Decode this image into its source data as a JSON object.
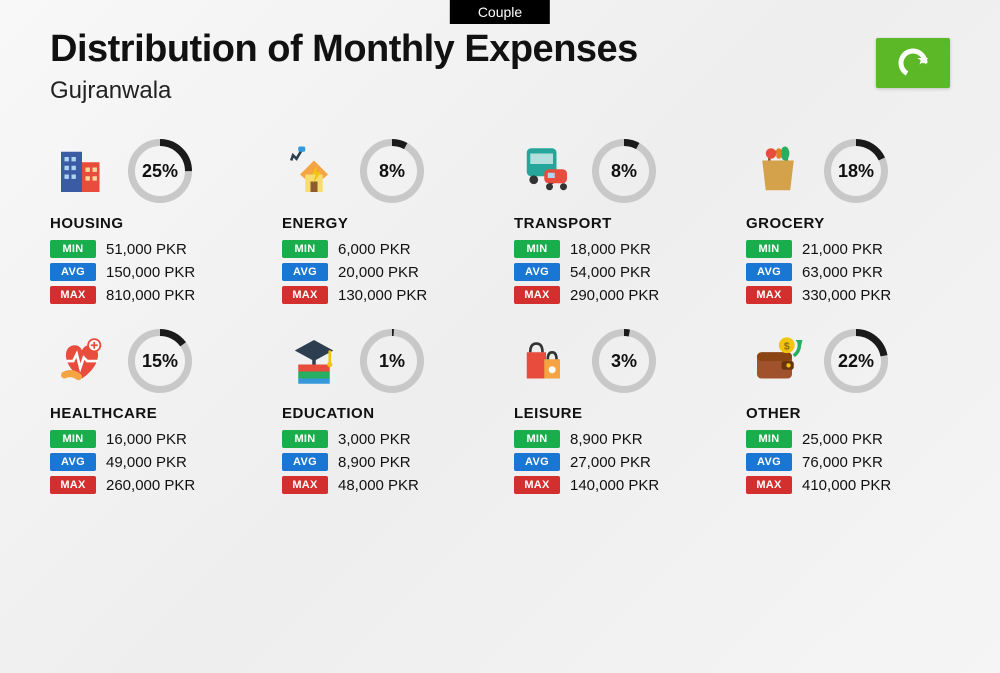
{
  "tag": "Couple",
  "title": "Distribution of Monthly Expenses",
  "subtitle": "Gujranwala",
  "currency": "PKR",
  "labels": {
    "min": "MIN",
    "avg": "AVG",
    "max": "MAX"
  },
  "colors": {
    "min": "#1aad4b",
    "avg": "#1976d2",
    "max": "#d32f2f",
    "donut_track": "#c8c8c8",
    "donut_fill": "#1a1a1a",
    "flag_bg": "#5cb827"
  },
  "donut": {
    "size": 64,
    "stroke": 7
  },
  "categories": [
    {
      "key": "housing",
      "name": "HOUSING",
      "percent": 25,
      "min": "51,000",
      "avg": "150,000",
      "max": "810,000",
      "icon": "building"
    },
    {
      "key": "energy",
      "name": "ENERGY",
      "percent": 8,
      "min": "6,000",
      "avg": "20,000",
      "max": "130,000",
      "icon": "energy"
    },
    {
      "key": "transport",
      "name": "TRANSPORT",
      "percent": 8,
      "min": "18,000",
      "avg": "54,000",
      "max": "290,000",
      "icon": "transport"
    },
    {
      "key": "grocery",
      "name": "GROCERY",
      "percent": 18,
      "min": "21,000",
      "avg": "63,000",
      "max": "330,000",
      "icon": "grocery"
    },
    {
      "key": "healthcare",
      "name": "HEALTHCARE",
      "percent": 15,
      "min": "16,000",
      "avg": "49,000",
      "max": "260,000",
      "icon": "healthcare"
    },
    {
      "key": "education",
      "name": "EDUCATION",
      "percent": 1,
      "min": "3,000",
      "avg": "8,900",
      "max": "48,000",
      "icon": "education"
    },
    {
      "key": "leisure",
      "name": "LEISURE",
      "percent": 3,
      "min": "8,900",
      "avg": "27,000",
      "max": "140,000",
      "icon": "leisure"
    },
    {
      "key": "other",
      "name": "OTHER",
      "percent": 22,
      "min": "25,000",
      "avg": "76,000",
      "max": "410,000",
      "icon": "wallet"
    }
  ]
}
